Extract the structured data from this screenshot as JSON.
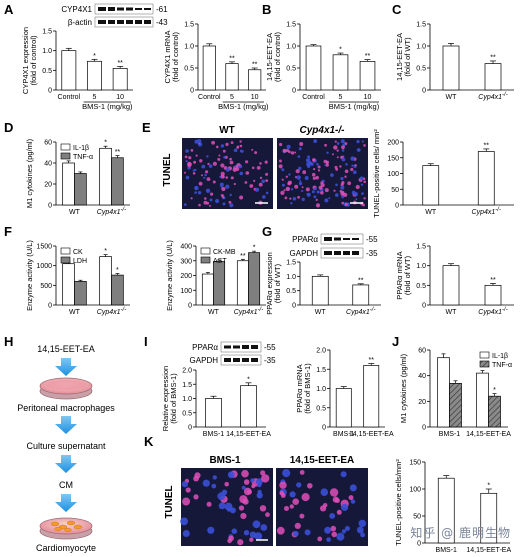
{
  "watermark": "知乎 @ 鹿明生物",
  "colors": {
    "gray": "#7f7f7f",
    "dark": "#555555",
    "arrow": "#2aa0e6",
    "tunel_bg": "#16183a"
  },
  "chart_data": [
    {
      "id": "A1",
      "type": "bar",
      "ylabel": "CYP4X1 expression\n(fold of control)",
      "xlabel": "BMS-1 (mg/kg)",
      "categories": [
        "Control",
        "5",
        "10"
      ],
      "values": [
        1.0,
        0.73,
        0.55
      ],
      "errors": [
        0.06,
        0.05,
        0.05
      ],
      "fills": [
        "w",
        "w",
        "w"
      ],
      "sig": [
        "",
        "*",
        "**"
      ],
      "ylim": [
        0,
        1.5
      ],
      "yticks": [
        0,
        0.5,
        1.0,
        1.5
      ]
    },
    {
      "id": "A2",
      "type": "bar",
      "ylabel": "CYP4X1 mRNA\n(fold of control)",
      "xlabel": "BMS-1 (mg/kg)",
      "categories": [
        "Control",
        "5",
        "10"
      ],
      "values": [
        1.0,
        0.6,
        0.46
      ],
      "errors": [
        0.05,
        0.04,
        0.04
      ],
      "fills": [
        "w",
        "w",
        "w"
      ],
      "sig": [
        "",
        "**",
        "**"
      ],
      "ylim": [
        0,
        1.5
      ],
      "yticks": [
        0,
        0.5,
        1.0,
        1.5
      ]
    },
    {
      "id": "B",
      "type": "bar",
      "ylabel": "14,15-EET-EA\n(fold of control)",
      "xlabel": "BMS-1 (mg/kg)",
      "categories": [
        "Control",
        "5",
        "10"
      ],
      "values": [
        1.0,
        0.8,
        0.65
      ],
      "errors": [
        0.03,
        0.04,
        0.04
      ],
      "fills": [
        "w",
        "w",
        "w"
      ],
      "sig": [
        "",
        "*",
        "**"
      ],
      "ylim": [
        0,
        1.5
      ],
      "yticks": [
        0,
        0.5,
        1.0,
        1.5
      ]
    },
    {
      "id": "C",
      "type": "bar",
      "ylabel": "14,15-EET-EA\n(fold of WT)",
      "xlabel": "",
      "categories": [
        "WT",
        "Cyp4x1-/-"
      ],
      "values": [
        1.0,
        0.6
      ],
      "errors": [
        0.06,
        0.06
      ],
      "fills": [
        "w",
        "w"
      ],
      "sig": [
        "",
        "**"
      ],
      "ylim": [
        0,
        1.5
      ],
      "yticks": [
        0,
        0.5,
        1.0,
        1.5
      ]
    },
    {
      "id": "D",
      "type": "bar",
      "ylabel": "M1 cytokines (pg/ml)",
      "xlabel": "",
      "categories": [
        "WT",
        "Cyp4x1-/-"
      ],
      "series": [
        {
          "name": "IL-1β",
          "values": [
            40,
            54
          ],
          "errors": [
            2,
            2
          ],
          "fill": "w"
        },
        {
          "name": "TNF-α",
          "values": [
            30,
            45
          ],
          "errors": [
            1.5,
            2
          ],
          "fill": "d"
        }
      ],
      "sig": [
        [
          "",
          ""
        ],
        [
          "*",
          "**"
        ]
      ],
      "ylim": [
        0,
        60
      ],
      "yticks": [
        0,
        20,
        40,
        60
      ],
      "legend": "top-left"
    },
    {
      "id": "E",
      "type": "bar",
      "ylabel": "TUNEL-positive cells/ mm²",
      "xlabel": "",
      "categories": [
        "WT",
        "Cyp4x1-/-"
      ],
      "values": [
        125,
        170
      ],
      "errors": [
        6,
        8
      ],
      "fills": [
        "w",
        "w"
      ],
      "sig": [
        "",
        "**"
      ],
      "ylim": [
        0,
        200
      ],
      "yticks": [
        0,
        50,
        100,
        150,
        200
      ]
    },
    {
      "id": "F1",
      "type": "bar",
      "ylabel": "Enzyme activity (U/L)",
      "xlabel": "",
      "categories": [
        "WT",
        "Cyp4x1-/-"
      ],
      "series": [
        {
          "name": "CK",
          "values": [
            1050,
            1230
          ],
          "errors": [
            40,
            50
          ],
          "fill": "w"
        },
        {
          "name": "LDH",
          "values": [
            600,
            760
          ],
          "errors": [
            30,
            40
          ],
          "fill": "d"
        }
      ],
      "sig": [
        [
          "",
          ""
        ],
        [
          "*",
          "*"
        ]
      ],
      "ylim": [
        0,
        1500
      ],
      "yticks": [
        0,
        500,
        1000,
        1500
      ],
      "legend": "top-left"
    },
    {
      "id": "F2",
      "type": "bar",
      "ylabel": "Enzyme activity (U/L)",
      "xlabel": "",
      "categories": [
        "WT",
        "Cyp4x1-/-"
      ],
      "series": [
        {
          "name": "CK-MB",
          "values": [
            210,
            300
          ],
          "errors": [
            10,
            10
          ],
          "fill": "w"
        },
        {
          "name": "AST",
          "values": [
            295,
            355
          ],
          "errors": [
            10,
            10
          ],
          "fill": "d"
        }
      ],
      "sig": [
        [
          "",
          ""
        ],
        [
          "**",
          "*"
        ]
      ],
      "ylim": [
        0,
        400
      ],
      "yticks": [
        0,
        100,
        200,
        300,
        400
      ],
      "legend": "top-left"
    },
    {
      "id": "G1",
      "type": "bar",
      "ylabel": "PPARα expression\n(fold of WT)",
      "xlabel": "",
      "categories": [
        "WT",
        "Cyp4x1-/-"
      ],
      "values": [
        1.0,
        0.7
      ],
      "errors": [
        0.05,
        0.04
      ],
      "fills": [
        "w",
        "w"
      ],
      "sig": [
        "",
        "**"
      ],
      "ylim": [
        0,
        1.5
      ],
      "yticks": [
        0,
        0.5,
        1.0,
        1.5
      ]
    },
    {
      "id": "G2",
      "type": "bar",
      "ylabel": "PPARα mRNA\n(fold of WT)",
      "xlabel": "",
      "categories": [
        "WT",
        "Cyp4x1-/-"
      ],
      "values": [
        1.0,
        0.5
      ],
      "errors": [
        0.05,
        0.05
      ],
      "fills": [
        "w",
        "w"
      ],
      "sig": [
        "",
        "**"
      ],
      "ylim": [
        0,
        1.5
      ],
      "yticks": [
        0,
        0.5,
        1.0,
        1.5
      ]
    },
    {
      "id": "I1",
      "type": "bar",
      "ylabel": "Relative expression\n(fold of BMS-1)",
      "xlabel": "",
      "categories": [
        "BMS-1",
        "14,15-EET-EA"
      ],
      "values": [
        1.0,
        1.45
      ],
      "errors": [
        0.08,
        0.1
      ],
      "fills": [
        "w",
        "w"
      ],
      "sig": [
        "",
        "*"
      ],
      "ylim": [
        0,
        2.0
      ],
      "yticks": [
        0,
        0.5,
        1.0,
        1.5,
        2.0
      ]
    },
    {
      "id": "I2",
      "type": "bar",
      "ylabel": "PPARα mRNA\n(fold of BMS-1)",
      "xlabel": "",
      "categories": [
        "BMS-1",
        "14,15-EET-EA"
      ],
      "values": [
        1.0,
        1.6
      ],
      "errors": [
        0.05,
        0.05
      ],
      "fills": [
        "w",
        "w"
      ],
      "sig": [
        "",
        "**"
      ],
      "ylim": [
        0,
        2.0
      ],
      "yticks": [
        0,
        0.5,
        1.0,
        1.5,
        2.0
      ]
    },
    {
      "id": "J",
      "type": "bar",
      "ylabel": "M1 cytokines (pg/ml)",
      "xlabel": "",
      "categories": [
        "BMS-1",
        "14,15-EET-EA"
      ],
      "series": [
        {
          "name": "IL-1β",
          "values": [
            54,
            42
          ],
          "errors": [
            3,
            2
          ],
          "fill": "w"
        },
        {
          "name": "TNF-α",
          "values": [
            34,
            24
          ],
          "errors": [
            2,
            2
          ],
          "fill": "h"
        }
      ],
      "sig": [
        [
          "",
          ""
        ],
        [
          "*",
          "*"
        ]
      ],
      "ylim": [
        0,
        60
      ],
      "yticks": [
        0,
        20,
        40,
        60
      ],
      "legend": "top-right"
    },
    {
      "id": "K",
      "type": "bar",
      "ylabel": "TUNEL-positive cells/mm²",
      "xlabel": "",
      "categories": [
        "BMS-1",
        "14,15-EET-EA"
      ],
      "values": [
        120,
        92
      ],
      "errors": [
        5,
        8
      ],
      "fills": [
        "w",
        "w"
      ],
      "sig": [
        "",
        "*"
      ],
      "ylim": [
        0,
        150
      ],
      "yticks": [
        0,
        50,
        100,
        150
      ]
    }
  ],
  "panel_letters": [
    "A",
    "B",
    "C",
    "D",
    "E",
    "F",
    "G",
    "H",
    "I",
    "J",
    "K"
  ],
  "blots": {
    "A": {
      "bands": [
        "CYP4X1",
        "β-actin"
      ],
      "kda": [
        "-61",
        "-43"
      ]
    },
    "G": {
      "bands": [
        "PPARα",
        "GAPDH"
      ],
      "kda": [
        "-55",
        "-35"
      ]
    },
    "I": {
      "bands": [
        "PPARα",
        "GAPDH"
      ],
      "kda": [
        "-55",
        "-35"
      ]
    }
  },
  "images": {
    "E": {
      "side": "TUNEL",
      "labels": [
        "WT",
        "Cyp4x1-/-"
      ]
    },
    "K": {
      "side": "TUNEL",
      "labels": [
        "BMS-1",
        "14,15-EET-EA"
      ]
    }
  },
  "flow": [
    "14,15-EET-EA",
    "Peritoneal macrophages",
    "Culture supernatant",
    "CM",
    "Cardiomyocyte"
  ]
}
